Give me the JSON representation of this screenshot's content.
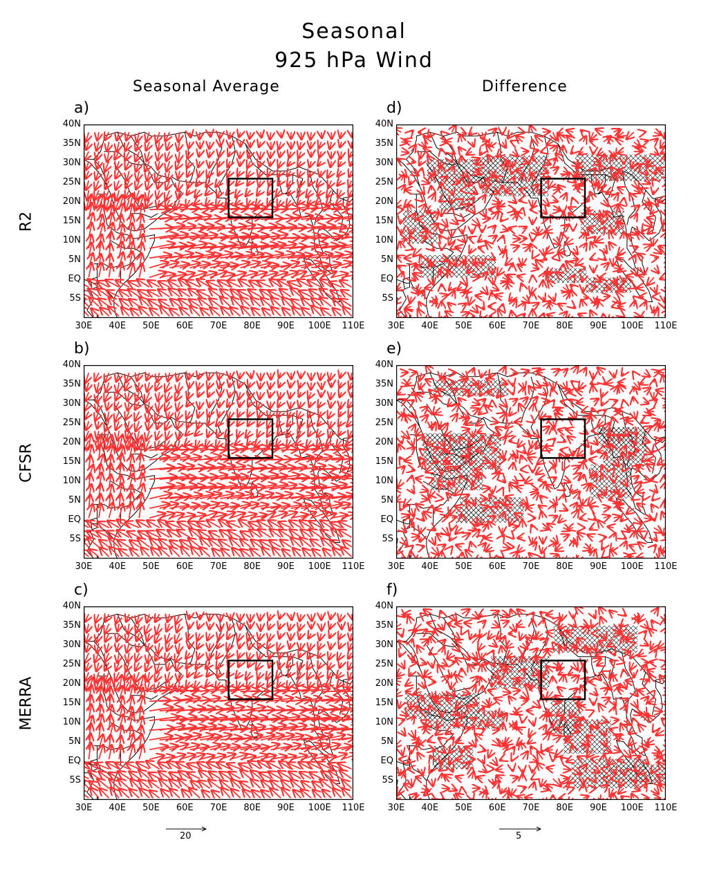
{
  "title_line1": "Seasonal",
  "title_line2": "925 hPa Wind",
  "col_titles": [
    "Seasonal Average",
    "Difference"
  ],
  "row_labels": [
    "R2",
    "CFSR",
    "MERRA"
  ],
  "panel_labels": [
    "a)",
    "b)",
    "c)",
    "d)",
    "e)",
    "f)"
  ],
  "y_ticks": [
    "40N",
    "35N",
    "30N",
    "25N",
    "20N",
    "15N",
    "10N",
    "5N",
    "EQ",
    "5S"
  ],
  "x_ticks": [
    "30E",
    "40E",
    "50E",
    "60E",
    "70E",
    "80E",
    "90E",
    "100E",
    "110E"
  ],
  "ref_vectors": [
    "20",
    "5"
  ],
  "colors": {
    "vector": "#ff3333",
    "map": "#000000",
    "box": "#000000",
    "hatch": "#000000"
  },
  "map_extent": {
    "lon": [
      30,
      110
    ],
    "lat": [
      -10,
      40
    ]
  },
  "highlight_box": {
    "lon": [
      73,
      86
    ],
    "lat": [
      16,
      26
    ]
  }
}
